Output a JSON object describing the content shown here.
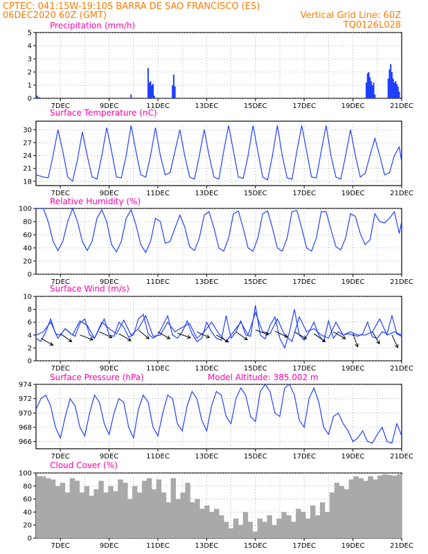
{
  "header": {
    "line1": "CPTEC:   041:15W-19:10S   BARRA DE SAO FRANCISCO (ES)",
    "line2": "06DEC2020 60Z (GMT)",
    "right1": "Vertical Grid Line: 60Z",
    "right2": "TQ0126L028"
  },
  "colors": {
    "header": "#ff7a00",
    "panel_title": "#ff00a8",
    "line": "#1f3fff",
    "bars_precip": "#1f3fff",
    "bars_cloud": "#a9a9a9",
    "wind_arrow": "#000000"
  },
  "chart_data": [
    {
      "id": "precip",
      "type": "bar",
      "title": "Precipitation (mm/h)",
      "x_ticks": [
        "7DEC",
        "9DEC",
        "11DEC",
        "13DEC",
        "15DEC",
        "17DEC",
        "19DEC",
        "21DEC"
      ],
      "ylim": [
        0,
        5
      ],
      "yticks": [
        0,
        1,
        2,
        3,
        4,
        5
      ],
      "grid": true,
      "x": [
        6.05,
        6.12,
        9.9,
        10.6,
        10.65,
        10.7,
        10.75,
        10.8,
        10.85,
        11.6,
        11.65,
        11.7,
        19.55,
        19.6,
        19.65,
        19.7,
        19.75,
        19.8,
        19.85,
        19.9,
        20.45,
        20.5,
        20.55,
        20.6,
        20.65,
        20.7,
        20.75,
        20.8,
        20.85,
        20.9
      ],
      "values": [
        0.2,
        0.1,
        0.3,
        2.3,
        1.2,
        1.3,
        1.0,
        1.1,
        0.2,
        1.0,
        1.8,
        0.9,
        1.2,
        1.9,
        2.0,
        1.6,
        1.3,
        1.0,
        1.2,
        0.3,
        1.5,
        2.2,
        2.6,
        2.0,
        1.5,
        1.2,
        1.3,
        1.1,
        0.9,
        0.5
      ]
    },
    {
      "id": "temp",
      "type": "line",
      "title": "Surface Temperature (nC)",
      "x_ticks": [
        "7DEC",
        "9DEC",
        "11DEC",
        "13DEC",
        "15DEC",
        "17DEC",
        "19DEC",
        "21DEC"
      ],
      "ylim": [
        17,
        32
      ],
      "yticks": [
        18,
        21,
        24,
        27,
        30
      ],
      "grid": true,
      "x": [
        6.0,
        6.3,
        6.5,
        6.7,
        6.9,
        7.1,
        7.3,
        7.5,
        7.7,
        7.9,
        8.1,
        8.3,
        8.5,
        8.7,
        8.9,
        9.1,
        9.3,
        9.5,
        9.7,
        9.9,
        10.1,
        10.3,
        10.5,
        10.7,
        10.9,
        11.1,
        11.3,
        11.5,
        11.7,
        11.9,
        12.1,
        12.3,
        12.5,
        12.7,
        12.9,
        13.1,
        13.3,
        13.5,
        13.7,
        13.9,
        14.1,
        14.3,
        14.5,
        14.7,
        14.9,
        15.1,
        15.3,
        15.5,
        15.7,
        15.9,
        16.1,
        16.3,
        16.5,
        16.7,
        16.9,
        17.1,
        17.3,
        17.5,
        17.7,
        17.9,
        18.1,
        18.3,
        18.5,
        18.7,
        18.9,
        19.1,
        19.3,
        19.5,
        19.7,
        19.9,
        20.1,
        20.3,
        20.5,
        20.7,
        20.9,
        21.0
      ],
      "values": [
        19.5,
        19.0,
        18.8,
        24,
        30,
        25,
        19,
        18,
        23,
        29.5,
        24,
        19,
        18.5,
        24,
        30.5,
        25,
        19,
        18.8,
        24,
        31,
        25,
        19.5,
        19,
        24,
        30.5,
        24,
        19.5,
        20,
        25,
        30,
        24,
        19,
        18.5,
        24,
        30,
        24,
        19,
        18.5,
        25,
        31,
        25,
        19,
        18.7,
        24,
        31,
        25,
        19,
        18.3,
        24,
        31,
        24,
        18.8,
        18.5,
        25,
        31,
        25,
        19,
        18.8,
        25,
        31,
        24,
        19,
        18.5,
        24,
        30,
        24,
        19,
        19.8,
        24,
        28,
        24,
        19.5,
        20,
        24,
        26,
        22.5
      ]
    },
    {
      "id": "rh",
      "type": "line",
      "title": "Relative Humidity (%)",
      "x_ticks": [
        "7DEC",
        "9DEC",
        "11DEC",
        "13DEC",
        "15DEC",
        "17DEC",
        "19DEC",
        "21DEC"
      ],
      "ylim": [
        0,
        100
      ],
      "yticks": [
        0,
        20,
        40,
        60,
        80,
        100
      ],
      "grid": true,
      "x": [
        6.0,
        6.3,
        6.5,
        6.7,
        6.9,
        7.1,
        7.3,
        7.5,
        7.7,
        7.9,
        8.1,
        8.3,
        8.5,
        8.7,
        8.9,
        9.1,
        9.3,
        9.5,
        9.7,
        9.9,
        10.1,
        10.3,
        10.5,
        10.7,
        10.9,
        11.1,
        11.3,
        11.5,
        11.7,
        11.9,
        12.1,
        12.3,
        12.5,
        12.7,
        12.9,
        13.1,
        13.3,
        13.5,
        13.7,
        13.9,
        14.1,
        14.3,
        14.5,
        14.7,
        14.9,
        15.1,
        15.3,
        15.5,
        15.7,
        15.9,
        16.1,
        16.3,
        16.5,
        16.7,
        16.9,
        17.1,
        17.3,
        17.5,
        17.7,
        17.9,
        18.1,
        18.3,
        18.5,
        18.7,
        18.9,
        19.1,
        19.3,
        19.5,
        19.7,
        19.9,
        20.1,
        20.3,
        20.5,
        20.7,
        20.9,
        21.0
      ],
      "values": [
        100,
        100,
        80,
        50,
        36,
        50,
        80,
        100,
        80,
        50,
        36,
        50,
        85,
        98,
        80,
        45,
        34,
        50,
        85,
        98,
        75,
        45,
        33,
        50,
        85,
        80,
        47,
        50,
        70,
        90,
        72,
        42,
        36,
        55,
        90,
        95,
        70,
        40,
        35,
        55,
        92,
        96,
        70,
        40,
        35,
        55,
        92,
        96,
        70,
        40,
        35,
        55,
        95,
        97,
        70,
        40,
        35,
        55,
        95,
        95,
        68,
        42,
        37,
        55,
        92,
        88,
        62,
        45,
        52,
        92,
        80,
        78,
        85,
        95,
        62,
        80
      ]
    },
    {
      "id": "wind",
      "type": "line",
      "title": "Surface Wind (m/s)",
      "x_ticks": [
        "7DEC",
        "9DEC",
        "11DEC",
        "13DEC",
        "15DEC",
        "17DEC",
        "19DEC",
        "21DEC"
      ],
      "ylim": [
        0,
        10
      ],
      "yticks": [
        0,
        2,
        4,
        6,
        8,
        10
      ],
      "grid": true,
      "series": [
        {
          "x": [
            6.0,
            6.2,
            6.4,
            6.6,
            6.8,
            7.0,
            7.2,
            7.4,
            7.6,
            7.8,
            8.0,
            8.2,
            8.4,
            8.6,
            8.8,
            9.0,
            9.2,
            9.4,
            9.6,
            9.8,
            10.0,
            10.2,
            10.4,
            10.6,
            10.8,
            11.0,
            11.2,
            11.4,
            11.6,
            11.8,
            12.0,
            12.2,
            12.4,
            12.6,
            12.8,
            13.0,
            13.2,
            13.4,
            13.6,
            13.8,
            14.0,
            14.2,
            14.4,
            14.6,
            14.8,
            15.0,
            15.2,
            15.4,
            15.6,
            15.8,
            16.0,
            16.2,
            16.4,
            16.6,
            16.8,
            17.0,
            17.2,
            17.4,
            17.6,
            17.8,
            18.0,
            18.2,
            18.4,
            18.6,
            18.8,
            19.0,
            19.2,
            19.4,
            19.6,
            19.8,
            20.0,
            20.2,
            20.4,
            20.6,
            20.8,
            21.0
          ],
          "values": [
            3.5,
            3.0,
            4.5,
            6.5,
            4.2,
            4.0,
            5.0,
            4.3,
            3.8,
            5.8,
            6.5,
            4.0,
            3.5,
            5.0,
            6.5,
            4.0,
            3.8,
            6.0,
            5.2,
            3.7,
            4.0,
            6.5,
            7.2,
            4.2,
            3.5,
            4.0,
            5.5,
            7.0,
            4.0,
            3.5,
            4.5,
            6.2,
            4.2,
            3.0,
            3.5,
            6.0,
            4.5,
            3.5,
            3.2,
            7.0,
            3.5,
            4.5,
            6.2,
            4.0,
            3.8,
            8.6,
            4.0,
            3.4,
            5.5,
            6.8,
            3.5,
            2.0,
            4.5,
            8.0,
            4.0,
            3.2,
            4.5,
            6.0,
            4.0,
            3.0,
            6.2,
            3.5,
            4.5,
            4.0,
            4.2,
            4.0,
            3.8,
            4.2,
            6.0,
            3.7,
            3.5,
            4.5,
            4.2,
            7.0,
            4.2,
            3.8
          ]
        },
        {
          "x": [
            6.0,
            6.3,
            6.6,
            6.9,
            7.2,
            7.5,
            7.8,
            8.1,
            8.4,
            8.7,
            9.0,
            9.3,
            9.6,
            9.9,
            10.2,
            10.5,
            10.8,
            11.1,
            11.4,
            11.7,
            12.0,
            12.3,
            12.6,
            12.9,
            13.2,
            13.5,
            13.8,
            14.1,
            14.4,
            14.7,
            15.0,
            15.3,
            15.6,
            15.9,
            16.2,
            16.5,
            16.8,
            17.1,
            17.4,
            17.7,
            18.0,
            18.3,
            18.6,
            18.9,
            19.2,
            19.5,
            19.8,
            20.1,
            20.4,
            20.7,
            21.0
          ],
          "values": [
            4.0,
            4.5,
            6.0,
            3.5,
            5.0,
            4.0,
            6.2,
            5.5,
            3.5,
            6.0,
            5.0,
            4.2,
            6.3,
            4.0,
            5.0,
            7.0,
            3.8,
            4.0,
            6.0,
            4.5,
            5.2,
            5.8,
            3.5,
            4.5,
            6.0,
            4.2,
            3.0,
            4.5,
            6.0,
            4.0,
            7.5,
            4.5,
            4.2,
            6.5,
            4.0,
            3.0,
            6.8,
            4.5,
            5.0,
            4.0,
            3.5,
            6.0,
            4.0,
            4.5,
            4.0,
            4.0,
            4.5,
            6.5,
            4.0,
            4.5,
            4.0
          ]
        }
      ],
      "arrows": {
        "x": [
          6.2,
          7.0,
          7.8,
          8.6,
          9.4,
          10.2,
          11.0,
          11.8,
          12.6,
          13.4,
          14.2,
          15.0,
          15.8,
          16.6,
          17.4,
          18.2,
          19.0,
          19.8,
          20.6
        ],
        "speed": [
          3.5,
          4.2,
          4.0,
          4.5,
          4.2,
          4.8,
          4.5,
          4.3,
          4.5,
          4.0,
          4.5,
          4.8,
          4.6,
          4.5,
          4.2,
          4.5,
          4.2,
          4.5,
          4.0
        ],
        "dir_deg": [
          60,
          55,
          70,
          65,
          60,
          50,
          60,
          70,
          65,
          60,
          55,
          70,
          65,
          60,
          55,
          60,
          20,
          30,
          25
        ]
      }
    },
    {
      "id": "pressure",
      "type": "line",
      "title": "Surface Pressure (hPa)",
      "annotation": "Model Altitude: 385.002 m",
      "x_ticks": [
        "7DEC",
        "9DEC",
        "11DEC",
        "13DEC",
        "15DEC",
        "17DEC",
        "19DEC",
        "21DEC"
      ],
      "ylim": [
        965,
        974
      ],
      "yticks": [
        966,
        968,
        970,
        972,
        974
      ],
      "grid": true,
      "x": [
        6.0,
        6.2,
        6.4,
        6.6,
        6.8,
        7.0,
        7.2,
        7.4,
        7.6,
        7.8,
        8.0,
        8.2,
        8.4,
        8.6,
        8.8,
        9.0,
        9.2,
        9.4,
        9.6,
        9.8,
        10.0,
        10.2,
        10.4,
        10.6,
        10.8,
        11.0,
        11.2,
        11.4,
        11.6,
        11.8,
        12.0,
        12.2,
        12.4,
        12.6,
        12.8,
        13.0,
        13.2,
        13.4,
        13.6,
        13.8,
        14.0,
        14.2,
        14.4,
        14.6,
        14.8,
        15.0,
        15.2,
        15.4,
        15.6,
        15.8,
        16.0,
        16.2,
        16.4,
        16.6,
        16.8,
        17.0,
        17.2,
        17.4,
        17.6,
        17.8,
        18.0,
        18.2,
        18.4,
        18.6,
        18.8,
        19.0,
        19.2,
        19.4,
        19.6,
        19.8,
        20.0,
        20.2,
        20.4,
        20.6,
        20.8,
        21.0
      ],
      "values": [
        970.5,
        972.0,
        972.5,
        971.0,
        968.0,
        966.5,
        969.5,
        972.0,
        971.0,
        968.0,
        966.8,
        970.0,
        972.5,
        971.5,
        968.5,
        967.0,
        970.0,
        972.0,
        971.5,
        968.0,
        966.5,
        970.5,
        972.5,
        971.5,
        968.0,
        966.8,
        970.0,
        972.5,
        972.0,
        968.5,
        967.5,
        971.0,
        973.0,
        972.0,
        969.0,
        967.5,
        971.0,
        973.0,
        972.5,
        969.5,
        968.5,
        972.0,
        973.5,
        972.5,
        969.5,
        968.8,
        973.0,
        974.0,
        973.0,
        970.0,
        969.5,
        973.5,
        974.0,
        972.5,
        969.0,
        968.0,
        972.0,
        973.5,
        971.5,
        968.0,
        967.0,
        969.5,
        970.0,
        968.5,
        967.5,
        966.0,
        966.5,
        967.5,
        966.0,
        965.8,
        967.0,
        968.0,
        966.0,
        965.8,
        968.5,
        966.8
      ]
    },
    {
      "id": "cloud",
      "type": "bar",
      "title": "Cloud Cover (%)",
      "x_ticks": [
        "7DEC",
        "9DEC",
        "11DEC",
        "13DEC",
        "15DEC",
        "17DEC",
        "19DEC",
        "21DEC"
      ],
      "ylim": [
        0,
        100
      ],
      "yticks": [
        0,
        20,
        40,
        60,
        80,
        100
      ],
      "grid": true,
      "x": [
        6.0,
        6.2,
        6.4,
        6.6,
        6.8,
        7.0,
        7.2,
        7.4,
        7.6,
        7.8,
        8.0,
        8.2,
        8.4,
        8.6,
        8.8,
        9.0,
        9.2,
        9.4,
        9.6,
        9.8,
        10.0,
        10.2,
        10.4,
        10.6,
        10.8,
        11.0,
        11.2,
        11.4,
        11.6,
        11.8,
        12.0,
        12.2,
        12.4,
        12.6,
        12.8,
        13.0,
        13.2,
        13.4,
        13.6,
        13.8,
        14.0,
        14.2,
        14.4,
        14.6,
        14.8,
        15.0,
        15.2,
        15.4,
        15.6,
        15.8,
        16.0,
        16.2,
        16.4,
        16.6,
        16.8,
        17.0,
        17.2,
        17.4,
        17.6,
        17.8,
        18.0,
        18.2,
        18.4,
        18.6,
        18.8,
        19.0,
        19.2,
        19.4,
        19.6,
        19.8,
        20.0,
        20.2,
        20.4,
        20.6,
        20.8,
        21.0
      ],
      "values": [
        95,
        95,
        92,
        90,
        80,
        85,
        70,
        92,
        88,
        70,
        80,
        65,
        75,
        88,
        70,
        80,
        72,
        90,
        85,
        60,
        80,
        70,
        88,
        92,
        75,
        90,
        70,
        55,
        92,
        60,
        70,
        85,
        55,
        60,
        45,
        50,
        40,
        45,
        35,
        25,
        15,
        30,
        20,
        40,
        25,
        10,
        30,
        25,
        35,
        20,
        30,
        40,
        35,
        25,
        45,
        40,
        30,
        50,
        35,
        55,
        40,
        70,
        85,
        80,
        75,
        90,
        95,
        92,
        88,
        95,
        90,
        96,
        98,
        97,
        96,
        98
      ]
    }
  ]
}
